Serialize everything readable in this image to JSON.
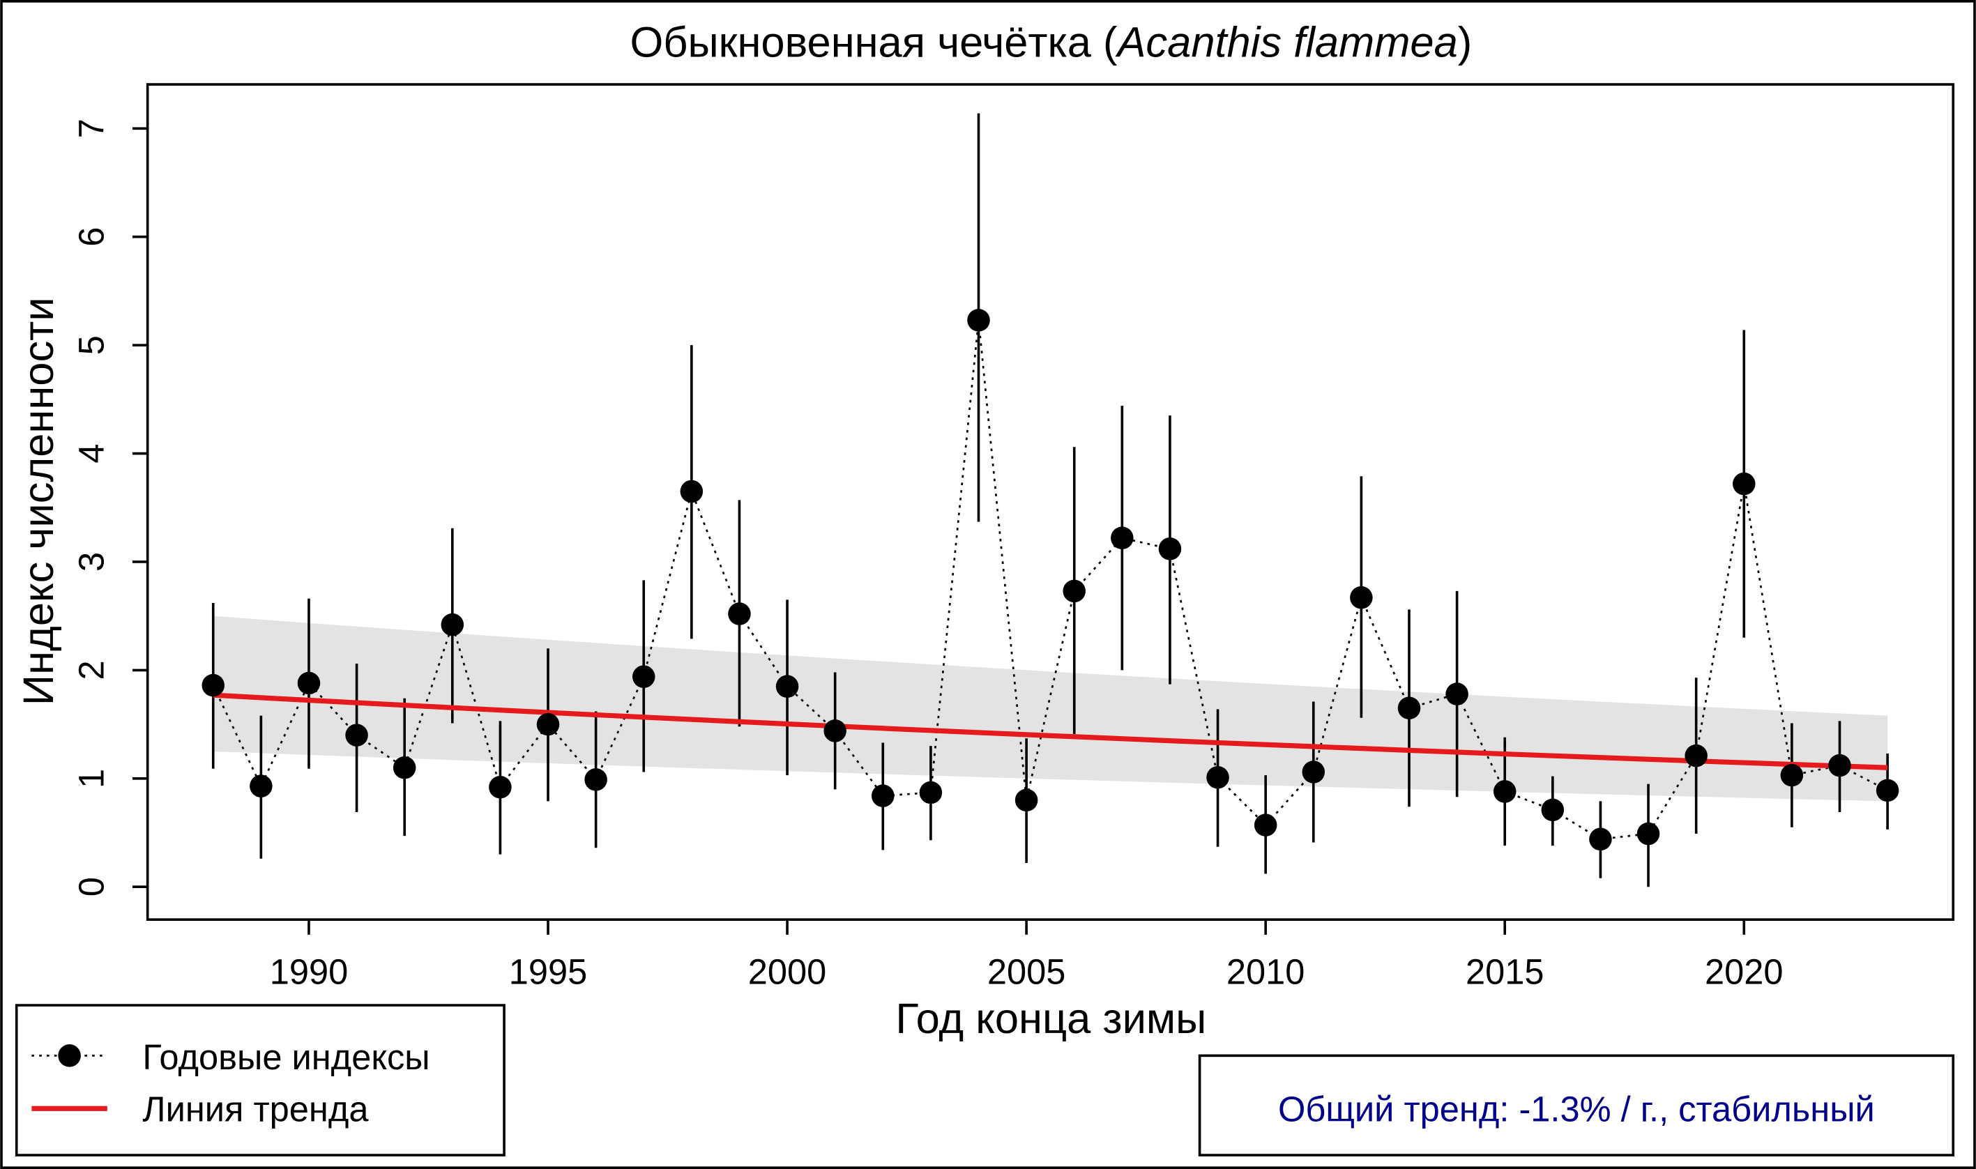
{
  "chart_data": {
    "type": "line",
    "title_plain": "Обыкновенная чечётка (",
    "title_italic": "Acanthis flammea",
    "title_close": ")",
    "xlabel": "Год конца зимы",
    "ylabel": "Индекс численности",
    "xlim": [
      1986.5,
      2024.5
    ],
    "ylim": [
      0,
      7
    ],
    "x_ticks": [
      1990,
      1995,
      2000,
      2005,
      2010,
      2015,
      2020
    ],
    "y_ticks": [
      0,
      1,
      2,
      3,
      4,
      5,
      6,
      7
    ],
    "series": [
      {
        "name": "Годовые индексы",
        "x": [
          1988,
          1989,
          1990,
          1991,
          1992,
          1993,
          1994,
          1995,
          1996,
          1997,
          1998,
          1999,
          2000,
          2001,
          2002,
          2003,
          2004,
          2005,
          2006,
          2007,
          2008,
          2009,
          2010,
          2011,
          2012,
          2013,
          2014,
          2015,
          2016,
          2017,
          2018,
          2019,
          2020,
          2021,
          2022,
          2023
        ],
        "y": [
          1.86,
          0.93,
          1.88,
          1.4,
          1.1,
          2.42,
          0.92,
          1.5,
          0.99,
          1.94,
          3.65,
          2.52,
          1.85,
          1.44,
          0.84,
          0.87,
          5.23,
          0.8,
          2.73,
          3.22,
          3.12,
          1.01,
          0.57,
          1.06,
          2.67,
          1.65,
          1.78,
          0.88,
          0.71,
          0.44,
          0.49,
          1.21,
          3.72,
          1.03,
          1.12,
          0.89
        ],
        "lower": [
          1.09,
          0.26,
          1.09,
          0.69,
          0.47,
          1.51,
          0.3,
          0.79,
          0.36,
          1.06,
          2.29,
          1.48,
          1.03,
          0.9,
          0.34,
          0.43,
          3.37,
          0.22,
          1.41,
          2.0,
          1.87,
          0.37,
          0.12,
          0.41,
          1.56,
          0.74,
          0.83,
          0.38,
          0.38,
          0.08,
          0.0,
          0.49,
          2.3,
          0.55,
          0.69,
          0.53
        ],
        "upper": [
          2.62,
          1.58,
          2.66,
          2.06,
          1.74,
          3.31,
          1.53,
          2.2,
          1.62,
          2.83,
          5.0,
          3.57,
          2.65,
          1.98,
          1.33,
          1.3,
          7.14,
          1.37,
          4.06,
          4.44,
          4.35,
          1.64,
          1.03,
          1.71,
          3.79,
          2.56,
          2.73,
          1.38,
          1.02,
          0.79,
          0.95,
          1.93,
          5.14,
          1.51,
          1.53,
          1.23
        ]
      },
      {
        "name": "Линия тренда",
        "x_range": [
          1988,
          2023
        ],
        "start": 1.77,
        "end": 1.1,
        "ci_start": [
          1.25,
          2.5
        ],
        "ci_end": [
          0.79,
          1.58
        ]
      }
    ],
    "legend": [
      "Годовые индексы",
      "Линия тренда"
    ],
    "legend_position": "bottom-left",
    "annotation": "Общий тренд: -1.3% / г., стабильный",
    "colors": {
      "trend": "#e41a1c",
      "band": "#e3e3e3",
      "points": "#000000",
      "annotation": "#00008b"
    }
  }
}
